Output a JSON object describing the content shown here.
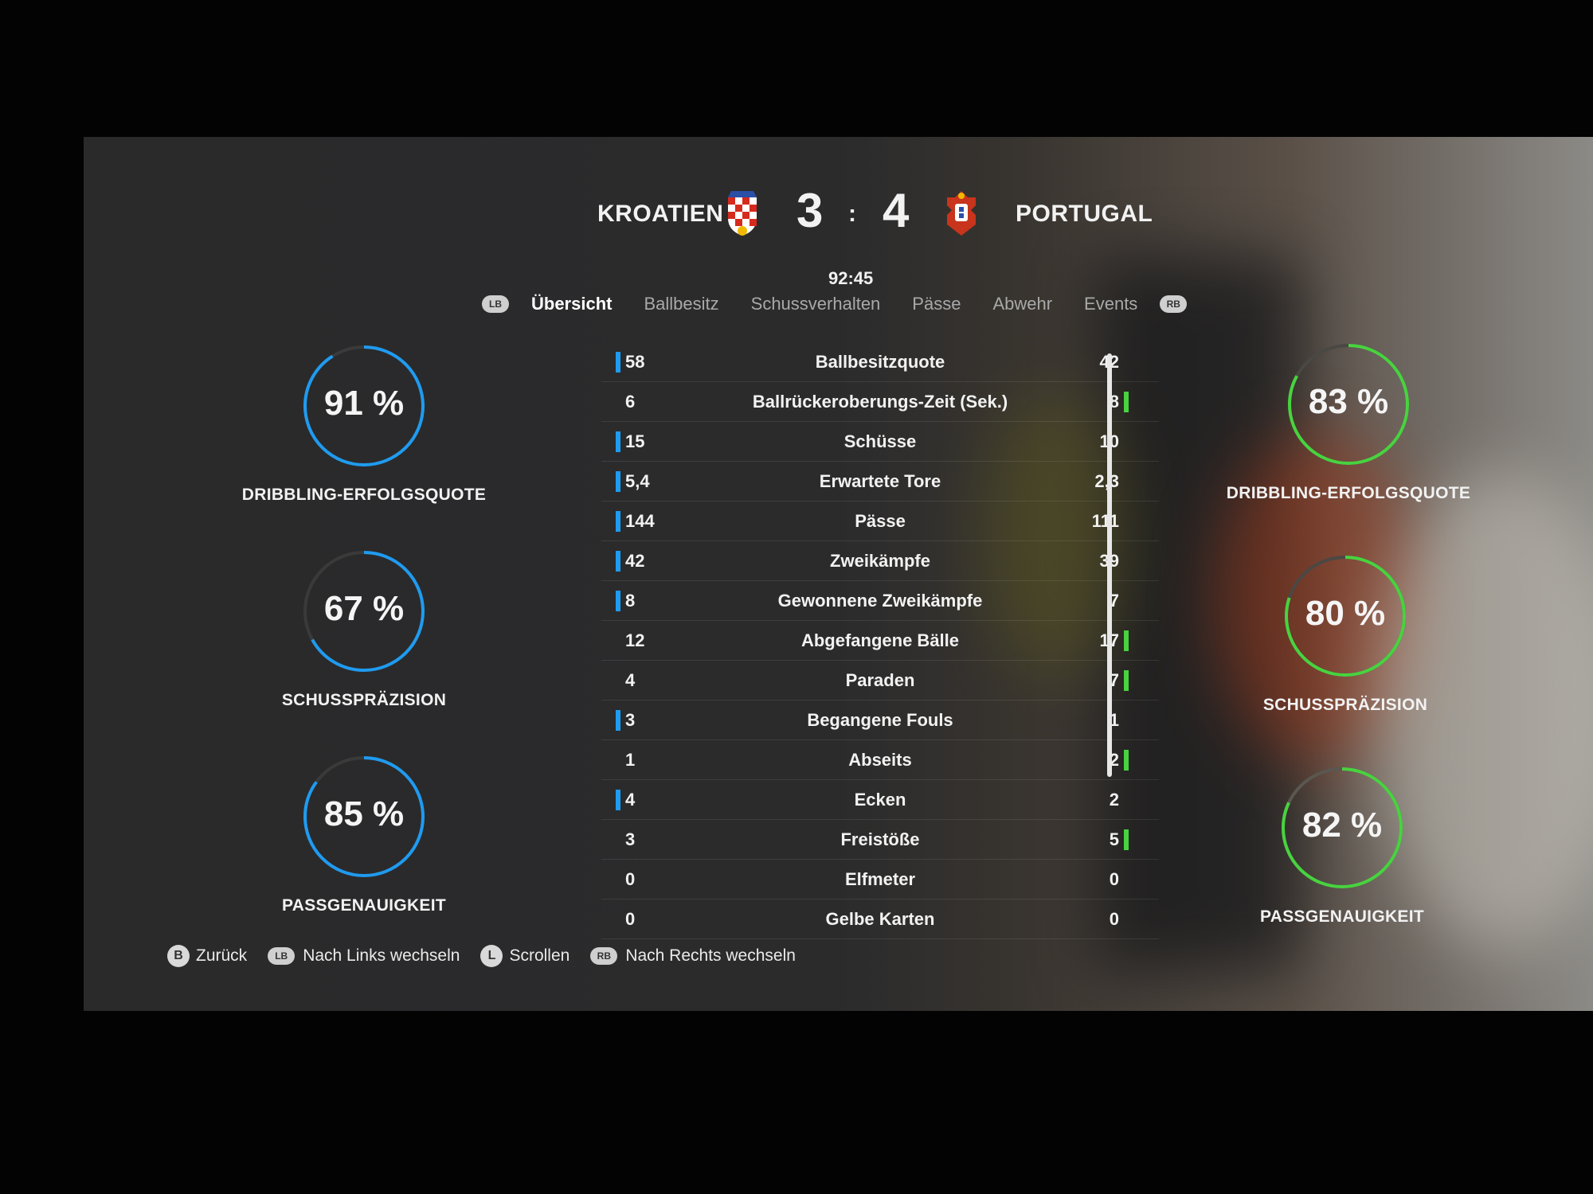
{
  "match": {
    "home_team": "KROATIEN",
    "away_team": "PORTUGAL",
    "home_score": "3",
    "separator": ":",
    "away_score": "4",
    "clock": "92:45"
  },
  "tabs": {
    "lb": "LB",
    "rb": "RB",
    "items": [
      "Übersicht",
      "Ballbesitz",
      "Schussverhalten",
      "Pässe",
      "Abwehr",
      "Events"
    ],
    "active_index": 0
  },
  "home_gauges": [
    {
      "value": "91 %",
      "fraction": 0.91,
      "label": "DRIBBLING-ERFOLGSQUOTE"
    },
    {
      "value": "67 %",
      "fraction": 0.67,
      "label": "SCHUSSPRÄZISION"
    },
    {
      "value": "85 %",
      "fraction": 0.85,
      "label": "PASSGENAUIGKEIT"
    }
  ],
  "away_gauges": [
    {
      "value": "83 %",
      "fraction": 0.83,
      "label": "DRIBBLING-ERFOLGSQUOTE"
    },
    {
      "value": "80 %",
      "fraction": 0.8,
      "label": "SCHUSSPRÄZISION"
    },
    {
      "value": "82 %",
      "fraction": 0.82,
      "label": "PASSGENAUIGKEIT"
    }
  ],
  "stats": [
    {
      "home": "58",
      "label": "Ballbesitzquote",
      "away": "42",
      "leader": "home"
    },
    {
      "home": "6",
      "label": "Ballrückeroberungs-Zeit (Sek.)",
      "away": "8",
      "leader": "away"
    },
    {
      "home": "15",
      "label": "Schüsse",
      "away": "10",
      "leader": "home"
    },
    {
      "home": "5,4",
      "label": "Erwartete Tore",
      "away": "2,3",
      "leader": "home"
    },
    {
      "home": "144",
      "label": "Pässe",
      "away": "111",
      "leader": "home"
    },
    {
      "home": "42",
      "label": "Zweikämpfe",
      "away": "39",
      "leader": "home"
    },
    {
      "home": "8",
      "label": "Gewonnene Zweikämpfe",
      "away": "7",
      "leader": "home"
    },
    {
      "home": "12",
      "label": "Abgefangene Bälle",
      "away": "17",
      "leader": "away"
    },
    {
      "home": "4",
      "label": "Paraden",
      "away": "7",
      "leader": "away"
    },
    {
      "home": "3",
      "label": "Begangene Fouls",
      "away": "1",
      "leader": "home"
    },
    {
      "home": "1",
      "label": "Abseits",
      "away": "2",
      "leader": "away"
    },
    {
      "home": "4",
      "label": "Ecken",
      "away": "2",
      "leader": "home"
    },
    {
      "home": "3",
      "label": "Freistöße",
      "away": "5",
      "leader": "away"
    },
    {
      "home": "0",
      "label": "Elfmeter",
      "away": "0",
      "leader": "none"
    },
    {
      "home": "0",
      "label": "Gelbe Karten",
      "away": "0",
      "leader": "none"
    }
  ],
  "footer": {
    "back_key": "B",
    "back_label": "Zurück",
    "left_key": "LB",
    "left_label": "Nach Links wechseln",
    "scroll_key": "L",
    "scroll_label": "Scrollen",
    "right_key": "RB",
    "right_label": "Nach Rechts wechseln"
  },
  "colors": {
    "home_accent": "#1f9bf0",
    "away_accent": "#48d33f"
  }
}
